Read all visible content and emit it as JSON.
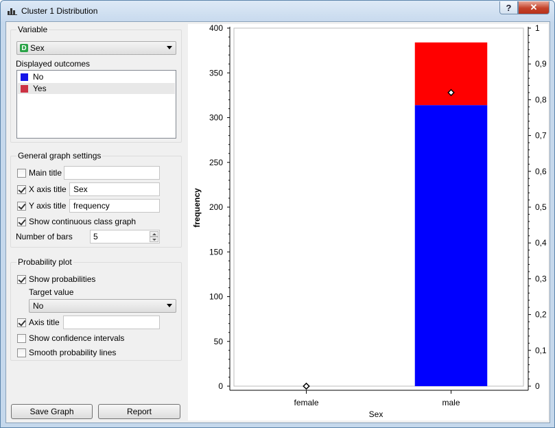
{
  "window": {
    "title": "Cluster 1 Distribution",
    "help_label": "?",
    "close_label": "✕"
  },
  "variable_group": {
    "title": "Variable",
    "selected": "Sex",
    "type_badge": "D",
    "outcomes_label": "Displayed outcomes",
    "outcomes": [
      {
        "label": "No",
        "color": "#1515e8"
      },
      {
        "label": "Yes",
        "color": "#cc3344"
      }
    ]
  },
  "graph_settings": {
    "title": "General graph settings",
    "main_title": {
      "label": "Main title",
      "checked": false,
      "value": ""
    },
    "x_axis_title": {
      "label": "X axis title",
      "checked": true,
      "value": "Sex"
    },
    "y_axis_title": {
      "label": "Y axis title",
      "checked": true,
      "value": "frequency"
    },
    "show_continuous": {
      "label": "Show continuous class graph",
      "checked": true
    },
    "number_of_bars_label": "Number of bars",
    "number_of_bars": "5"
  },
  "probability_plot": {
    "title": "Probability plot",
    "show_probabilities": {
      "label": "Show probabilities",
      "checked": true
    },
    "target_value_label": "Target value",
    "target_value": "No",
    "axis_title": {
      "label": "Axis title",
      "checked": true,
      "value": ""
    },
    "show_confidence": {
      "label": "Show confidence intervals",
      "checked": false
    },
    "smooth_lines": {
      "label": "Smooth probability lines",
      "checked": false
    }
  },
  "buttons": {
    "save_graph": "Save Graph",
    "report": "Report"
  },
  "chart_data": {
    "type": "bar",
    "categories": [
      "female",
      "male"
    ],
    "series": [
      {
        "name": "No",
        "values": [
          0,
          314
        ],
        "color": "#0000ff"
      },
      {
        "name": "Yes",
        "values": [
          0,
          70
        ],
        "color": "#ff0000"
      }
    ],
    "probabilities": [
      0.0,
      0.82
    ],
    "xlabel": "Sex",
    "ylabel": "frequency",
    "ylim": [
      0,
      400
    ],
    "y_ticks": [
      "0",
      "50",
      "100",
      "150",
      "200",
      "250",
      "300",
      "350",
      "400"
    ],
    "y2lim": [
      0,
      1
    ],
    "y2_ticks": [
      "0",
      "0,1",
      "0,2",
      "0,3",
      "0,4",
      "0,5",
      "0,6",
      "0,7",
      "0,8",
      "0,9",
      "1"
    ],
    "grid": false
  }
}
